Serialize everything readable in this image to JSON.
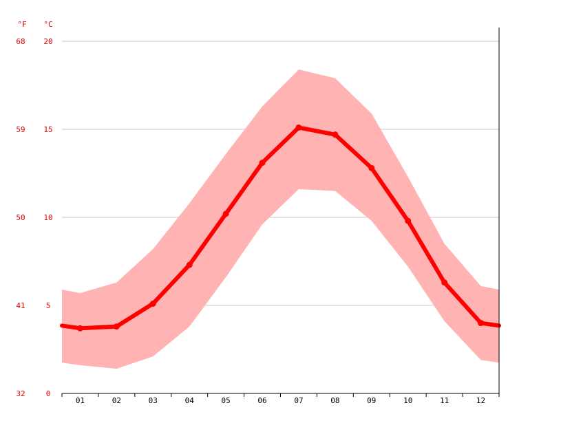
{
  "chart_data": {
    "type": "line",
    "title": "",
    "xlabel": "",
    "ylabel": "",
    "units": {
      "fahrenheit": "°F",
      "celsius": "°C"
    },
    "categories": [
      "01",
      "02",
      "03",
      "04",
      "05",
      "06",
      "07",
      "08",
      "09",
      "10",
      "11",
      "12"
    ],
    "y_ticks_celsius": [
      "0",
      "5",
      "10",
      "15",
      "20"
    ],
    "y_ticks_fahrenheit": [
      "32",
      "41",
      "50",
      "59",
      "68"
    ],
    "ylim": [
      0,
      20
    ],
    "grid": true,
    "series": [
      {
        "values": [
          3.7,
          3.8,
          5.1,
          7.3,
          10.2,
          13.1,
          15.1,
          14.7,
          12.8,
          9.8,
          6.3,
          4.0
        ]
      }
    ],
    "band": {
      "low": [
        1.6,
        1.4,
        2.1,
        3.8,
        6.6,
        9.6,
        11.6,
        11.5,
        9.8,
        7.2,
        4.1,
        1.9
      ],
      "high": [
        5.7,
        6.3,
        8.2,
        10.8,
        13.6,
        16.3,
        18.4,
        17.9,
        15.9,
        12.3,
        8.5,
        6.1
      ]
    },
    "colors": {
      "line": "#ff0000",
      "band": "#ffb3b3",
      "tick_label": "#e00000",
      "grid": "#c8c8c8",
      "axis": "#000000"
    }
  }
}
